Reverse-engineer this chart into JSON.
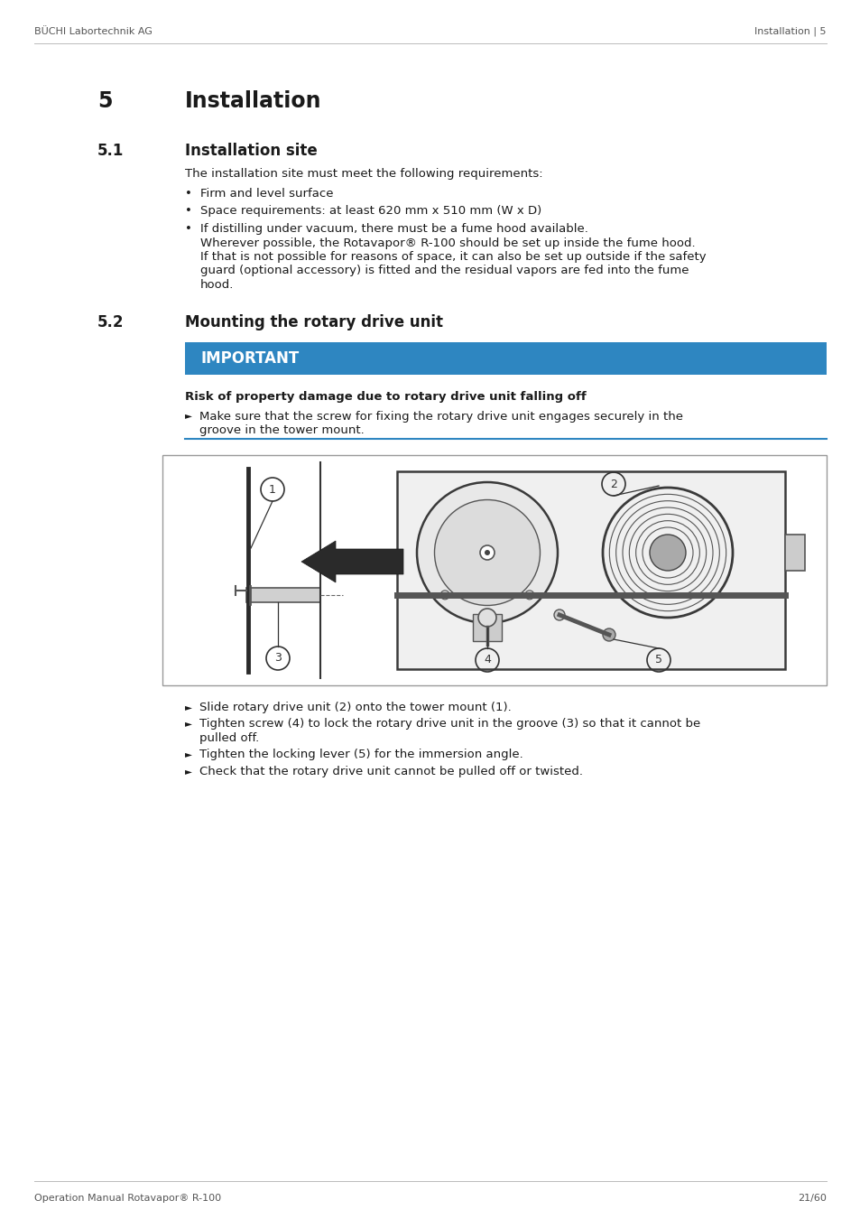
{
  "header_left": "BÜCHI Labortechnik AG",
  "header_right": "Installation | 5",
  "footer_left": "Operation Manual Rotavapor® R-100",
  "footer_right": "21/60",
  "chapter_number": "5",
  "chapter_title": "Installation",
  "section_51_number": "5.1",
  "section_51_title": "Installation site",
  "section_51_intro": "The installation site must meet the following requirements:",
  "section_51_bullets": [
    "Firm and level surface",
    "Space requirements: at least 620 mm x 510 mm (W x D)",
    "If distilling under vacuum, there must be a fume hood available.\nWherever possible, the Rotavapor® R-100 should be set up inside the fume hood.\nIf that is not possible for reasons of space, it can also be set up outside if the safety\nguard (optional accessory) is fitted and the residual vapors are fed into the fume\nhood."
  ],
  "section_52_number": "5.2",
  "section_52_title": "Mounting the rotary drive unit",
  "important_label": "IMPORTANT",
  "important_bg": "#2e86c1",
  "important_text_color": "#ffffff",
  "risk_title": "Risk of property damage due to rotary drive unit falling off",
  "risk_bullet": "Make sure that the screw for fixing the rotary drive unit engages securely in the\ngroove in the tower mount.",
  "instructions": [
    "Slide rotary drive unit (2) onto the tower mount (1).",
    "Tighten screw (4) to lock the rotary drive unit in the groove (3) so that it cannot be\npulled off.",
    "Tighten the locking lever (5) for the immersion angle.",
    "Check that the rotary drive unit cannot be pulled off or twisted."
  ],
  "bg_color": "#ffffff",
  "text_color": "#1a1a1a",
  "header_color": "#555555",
  "line_color": "#aaaaaa",
  "risk_line_color": "#2e86c1",
  "chapter_fontsize": 17,
  "section_fontsize": 12,
  "body_fontsize": 9.5,
  "header_fontsize": 8
}
